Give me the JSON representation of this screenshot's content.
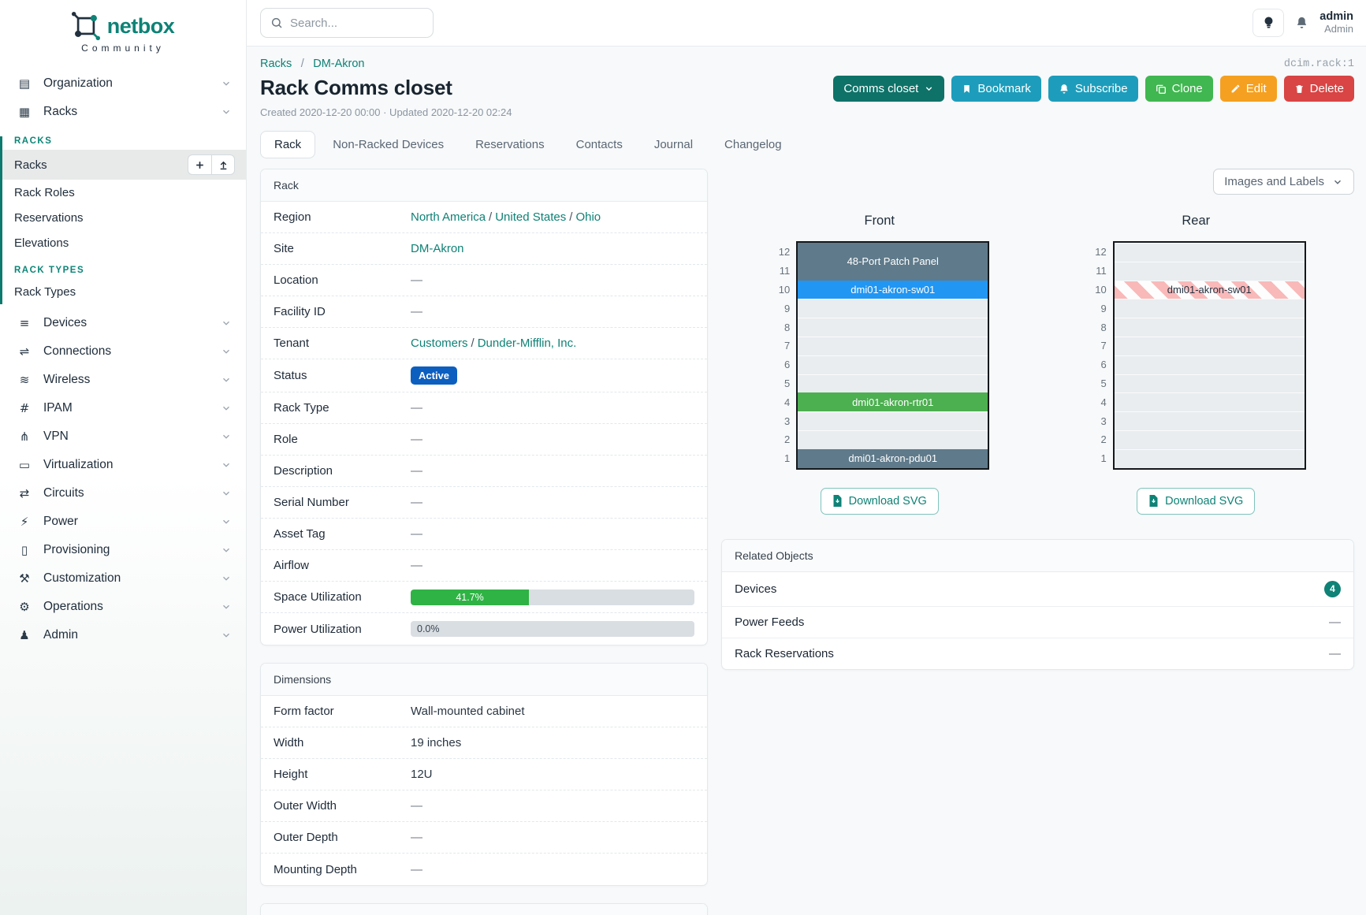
{
  "brand": {
    "name": "netbox",
    "community": "Community"
  },
  "topbar": {
    "search_placeholder": "Search...",
    "username": "admin",
    "role": "Admin"
  },
  "sidebar": {
    "top_items": [
      {
        "icon": "icon-organization",
        "label": "Organization"
      },
      {
        "icon": "icon-racks",
        "label": "Racks"
      }
    ],
    "racks_section_header": "RACKS",
    "racks_item_label": "Racks",
    "racks_subitems": [
      {
        "label": "Rack Roles"
      },
      {
        "label": "Reservations"
      },
      {
        "label": "Elevations"
      }
    ],
    "rack_types_header": "RACK TYPES",
    "rack_types_items": [
      {
        "label": "Rack Types"
      }
    ],
    "bottom_items": [
      {
        "icon": "icon-devices",
        "label": "Devices"
      },
      {
        "icon": "icon-connections",
        "label": "Connections"
      },
      {
        "icon": "icon-wireless",
        "label": "Wireless"
      },
      {
        "icon": "icon-ipam",
        "label": "IPAM"
      },
      {
        "icon": "icon-vpn",
        "label": "VPN"
      },
      {
        "icon": "icon-virtualization",
        "label": "Virtualization"
      },
      {
        "icon": "icon-circuits",
        "label": "Circuits"
      },
      {
        "icon": "icon-power",
        "label": "Power"
      },
      {
        "icon": "icon-provisioning",
        "label": "Provisioning"
      },
      {
        "icon": "icon-customization",
        "label": "Customization"
      },
      {
        "icon": "icon-operations",
        "label": "Operations"
      },
      {
        "icon": "icon-admin",
        "label": "Admin"
      }
    ]
  },
  "page": {
    "breadcrumb": [
      "Racks",
      "DM-Akron"
    ],
    "sep": "/",
    "object_id": "dcim.rack:1",
    "title": "Rack Comms closet",
    "meta": "Created 2020-12-20 00:00 · Updated 2020-12-20 02:24",
    "actions": {
      "name_dropdown": "Comms closet",
      "bookmark": "Bookmark",
      "subscribe": "Subscribe",
      "clone": "Clone",
      "edit": "Edit",
      "delete": "Delete"
    }
  },
  "tabs": [
    {
      "label": "Rack",
      "cls": "active"
    },
    {
      "label": "Non-Racked Devices"
    },
    {
      "label": "Reservations"
    },
    {
      "label": "Contacts"
    },
    {
      "label": "Journal"
    },
    {
      "label": "Changelog"
    }
  ],
  "rack_panel": {
    "title": "Rack",
    "labels": {
      "region": "Region",
      "site": "Site",
      "location": "Location",
      "facility_id": "Facility ID",
      "tenant": "Tenant",
      "status": "Status",
      "rack_type": "Rack Type",
      "role": "Role",
      "description": "Description",
      "serial": "Serial Number",
      "asset_tag": "Asset Tag",
      "airflow": "Airflow",
      "space_util": "Space Utilization",
      "power_util": "Power Utilization"
    },
    "values": {
      "region": [
        "North America",
        "United States",
        "Ohio"
      ],
      "site": "DM-Akron",
      "location": "—",
      "facility_id": "—",
      "tenant": [
        "Customers",
        "Dunder-Mifflin, Inc."
      ],
      "status": "Active",
      "rack_type": "—",
      "role": "—",
      "description": "—",
      "serial": "—",
      "asset_tag": "—",
      "airflow": "—",
      "space_utilization": "41.7%",
      "power_utilization": "0.0%"
    }
  },
  "dimensions_panel": {
    "title": "Dimensions",
    "rows": [
      {
        "label": "Form factor",
        "value": "Wall-mounted cabinet"
      },
      {
        "label": "Width",
        "value": "19 inches"
      },
      {
        "label": "Height",
        "value": "12U"
      },
      {
        "label": "Outer Width",
        "value": "—",
        "cls": "dash"
      },
      {
        "label": "Outer Depth",
        "value": "—",
        "cls": "dash"
      },
      {
        "label": "Mounting Depth",
        "value": "—",
        "cls": "dash"
      }
    ]
  },
  "elevations": {
    "view_toggle": "Images and Labels",
    "download_label": "Download SVG",
    "front": {
      "title": "Front",
      "unit_numbers": [
        12,
        11,
        10,
        9,
        8,
        7,
        6,
        5,
        4,
        3,
        2,
        1
      ],
      "slots": [
        {
          "cls": "occ slate u2",
          "label": "48-Port Patch Panel"
        },
        {
          "cls": "occ blue",
          "label": "dmi01-akron-sw01"
        },
        {
          "cls": "empty",
          "label": ""
        },
        {
          "cls": "empty",
          "label": ""
        },
        {
          "cls": "empty",
          "label": ""
        },
        {
          "cls": "empty",
          "label": ""
        },
        {
          "cls": "empty",
          "label": ""
        },
        {
          "cls": "occ green",
          "label": "dmi01-akron-rtr01"
        },
        {
          "cls": "empty",
          "label": ""
        },
        {
          "cls": "empty",
          "label": ""
        },
        {
          "cls": "occ slate",
          "label": "dmi01-akron-pdu01"
        }
      ]
    },
    "rear": {
      "title": "Rear",
      "unit_numbers": [
        12,
        11,
        10,
        9,
        8,
        7,
        6,
        5,
        4,
        3,
        2,
        1
      ],
      "slots": [
        {
          "cls": "empty",
          "label": ""
        },
        {
          "cls": "empty",
          "label": ""
        },
        {
          "cls": "occ striped",
          "label": "dmi01-akron-sw01"
        },
        {
          "cls": "empty",
          "label": ""
        },
        {
          "cls": "empty",
          "label": ""
        },
        {
          "cls": "empty",
          "label": ""
        },
        {
          "cls": "empty",
          "label": ""
        },
        {
          "cls": "empty",
          "label": ""
        },
        {
          "cls": "empty",
          "label": ""
        },
        {
          "cls": "empty",
          "label": ""
        },
        {
          "cls": "empty",
          "label": ""
        },
        {
          "cls": "empty",
          "label": ""
        }
      ]
    }
  },
  "related_panel": {
    "title": "Related Objects",
    "devices_label": "Devices",
    "devices_count": "4",
    "power_feeds_label": "Power Feeds",
    "power_feeds_value": "—",
    "rack_reservations_label": "Rack Reservations",
    "rack_reservations_value": "—"
  },
  "colors": {
    "brand_teal": "#0e8276",
    "status_blue": "#0c5fbf",
    "utilization_green": "#2fb344",
    "device_slate": "#5f7a8a",
    "device_blue": "#2196f3",
    "device_green": "#4caf50"
  }
}
